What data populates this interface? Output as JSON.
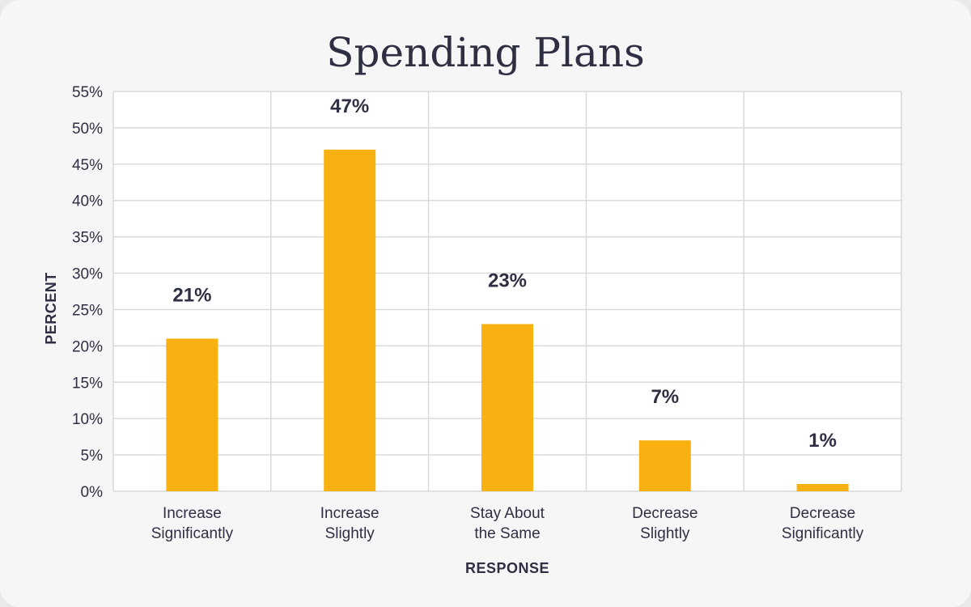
{
  "chart_data": {
    "type": "bar",
    "title": "Spending Plans",
    "xlabel": "RESPONSE",
    "ylabel": "PERCENT",
    "categories": [
      [
        "Increase",
        "Significantly"
      ],
      [
        "Increase",
        "Slightly"
      ],
      [
        "Stay About",
        "the Same"
      ],
      [
        "Decrease",
        "Slightly"
      ],
      [
        "Decrease",
        "Significantly"
      ]
    ],
    "values": [
      21,
      47,
      23,
      7,
      1
    ],
    "data_labels": [
      "21%",
      "47%",
      "23%",
      "7%",
      "1%"
    ],
    "yticks": [
      "0%",
      "5%",
      "10%",
      "15%",
      "20%",
      "25%",
      "30%",
      "35%",
      "40%",
      "45%",
      "50%",
      "55%"
    ],
    "ylim": [
      0,
      55
    ],
    "grid": true,
    "colors": {
      "bar": "#f9b111",
      "grid": "#d9d9d9",
      "text": "#2f2f44",
      "plot_bg": "#ffffff"
    }
  }
}
